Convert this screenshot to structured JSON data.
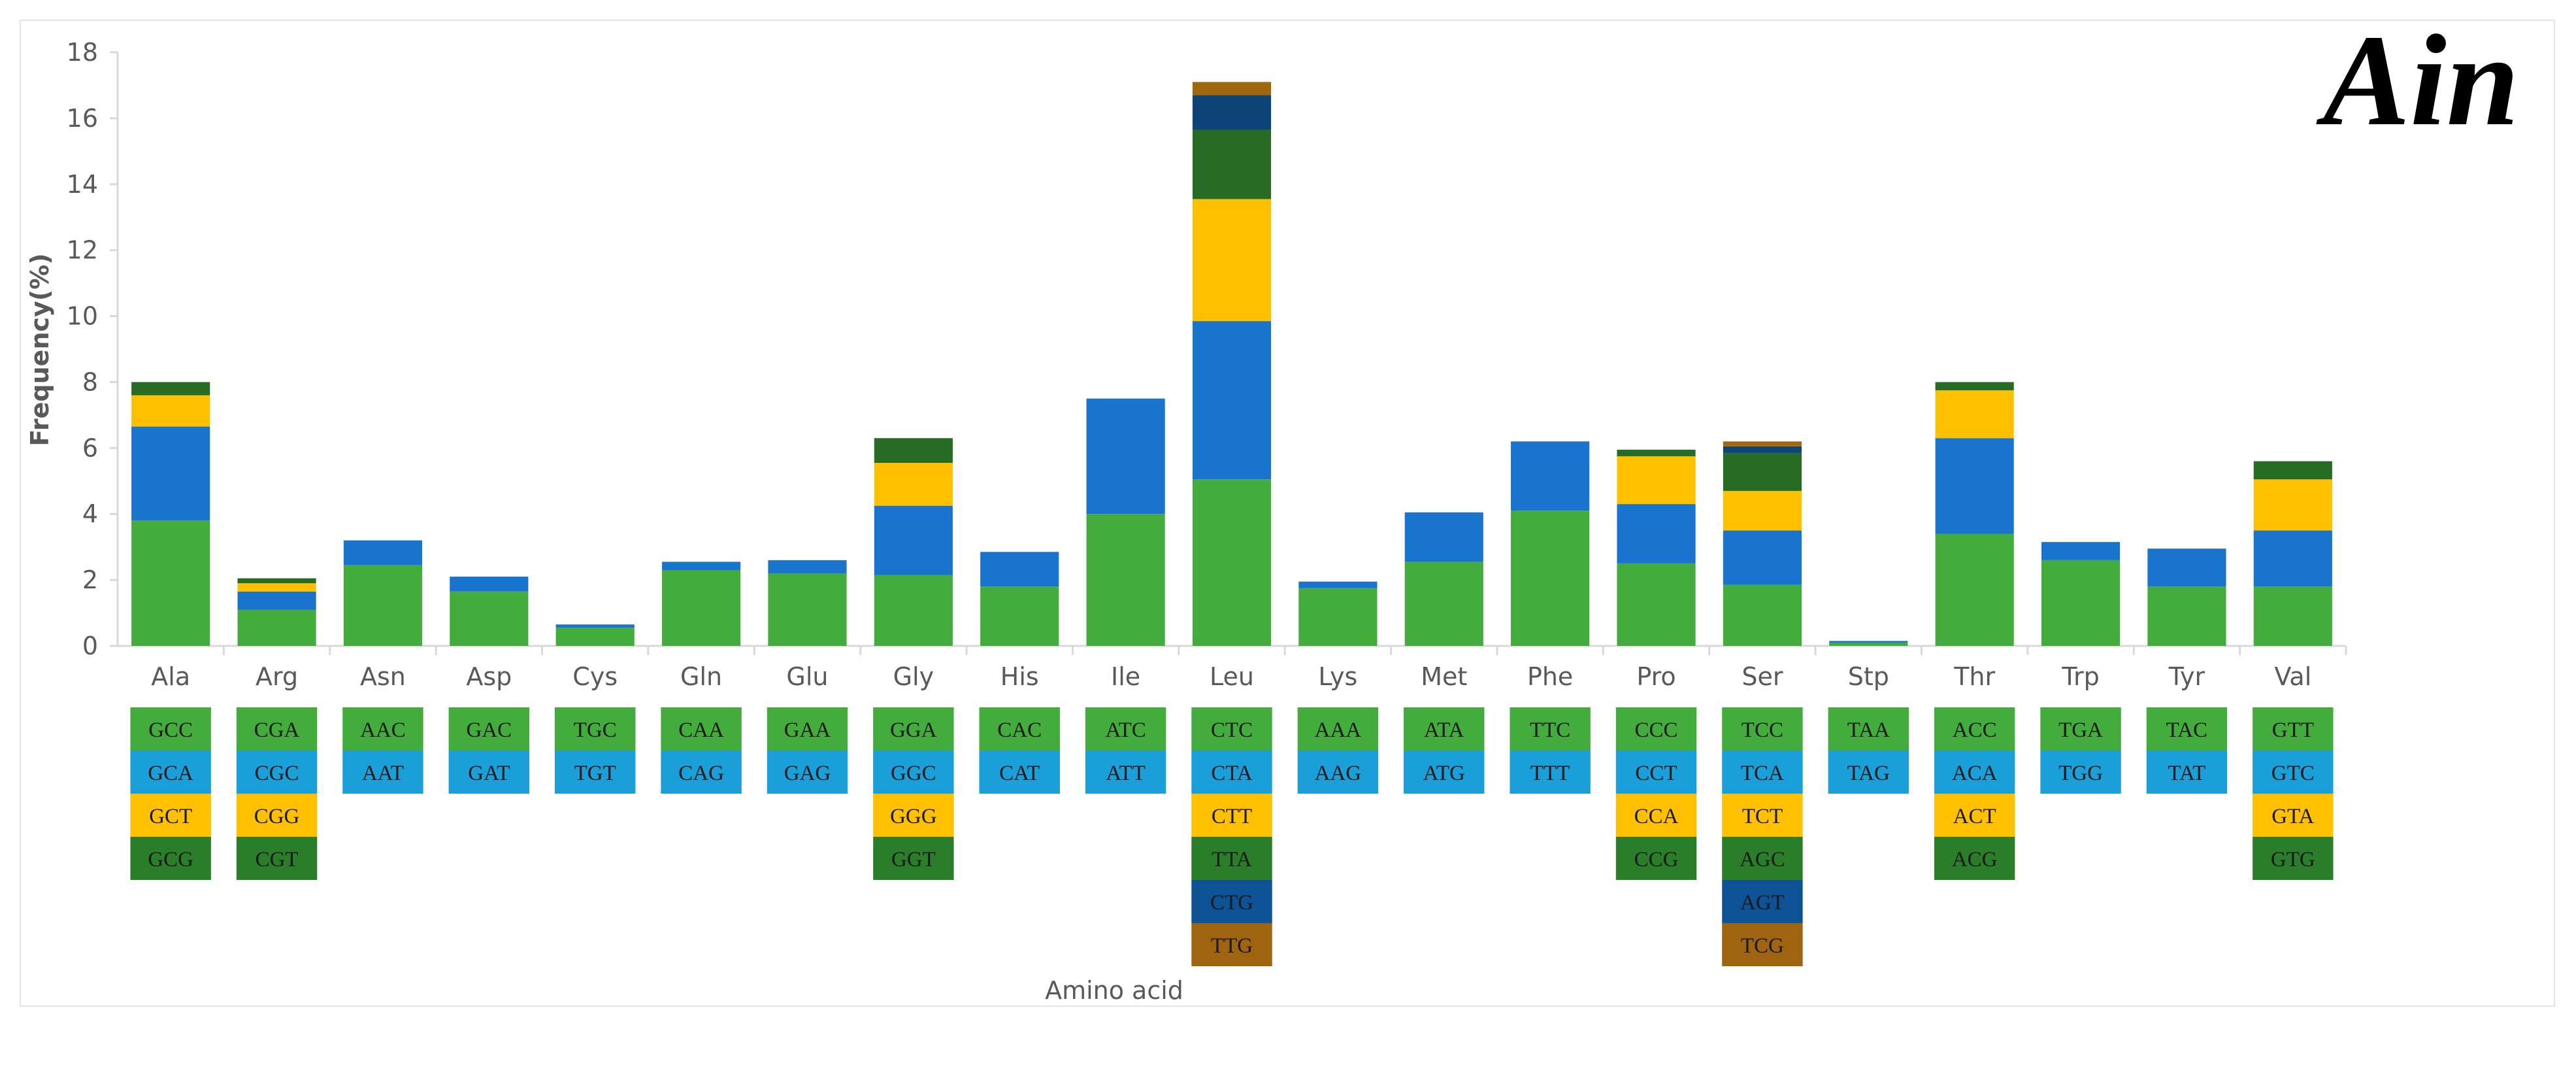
{
  "panel_label": "Ain",
  "chart_data": {
    "type": "bar",
    "stacked": true,
    "title": "",
    "xlabel": "Amino acid",
    "ylabel": "Frequency(%)",
    "ylim": [
      0,
      18
    ],
    "yticks": [
      0,
      2,
      4,
      6,
      8,
      10,
      12,
      14,
      16,
      18
    ],
    "grid": false,
    "legend": "codon table below x-axis",
    "stack_colors": [
      "#43AC3C",
      "#1874CD",
      "#FFC000",
      "#276B24",
      "#0C4478",
      "#A0680C"
    ],
    "codon_colors": [
      "#43AC3C",
      "#1B9FD9",
      "#FFC000",
      "#2A7D29",
      "#0C5294",
      "#9E6410"
    ],
    "categories": [
      "Ala",
      "Arg",
      "Asn",
      "Asp",
      "Cys",
      "Gln",
      "Glu",
      "Gly",
      "His",
      "Ile",
      "Leu",
      "Lys",
      "Met",
      "Phe",
      "Pro",
      "Ser",
      "Stp",
      "Thr",
      "Trp",
      "Tyr",
      "Val"
    ],
    "bars": [
      {
        "codons": [
          "GCC",
          "GCA",
          "GCT",
          "GCG"
        ],
        "values": [
          3.8,
          2.85,
          0.95,
          0.4
        ]
      },
      {
        "codons": [
          "CGA",
          "CGC",
          "CGG",
          "CGT"
        ],
        "values": [
          1.1,
          0.55,
          0.25,
          0.15
        ]
      },
      {
        "codons": [
          "AAC",
          "AAT"
        ],
        "values": [
          2.45,
          0.75
        ]
      },
      {
        "codons": [
          "GAC",
          "GAT"
        ],
        "values": [
          1.65,
          0.45
        ]
      },
      {
        "codons": [
          "TGC",
          "TGT"
        ],
        "values": [
          0.55,
          0.1
        ]
      },
      {
        "codons": [
          "CAA",
          "CAG"
        ],
        "values": [
          2.3,
          0.25
        ]
      },
      {
        "codons": [
          "GAA",
          "GAG"
        ],
        "values": [
          2.2,
          0.4
        ]
      },
      {
        "codons": [
          "GGA",
          "GGC",
          "GGG",
          "GGT"
        ],
        "values": [
          2.15,
          2.1,
          1.3,
          0.75
        ]
      },
      {
        "codons": [
          "CAC",
          "CAT"
        ],
        "values": [
          1.8,
          1.05
        ]
      },
      {
        "codons": [
          "ATC",
          "ATT"
        ],
        "values": [
          4.0,
          3.5
        ]
      },
      {
        "codons": [
          "CTC",
          "CTA",
          "CTT",
          "TTA",
          "CTG",
          "TTG"
        ],
        "values": [
          5.05,
          4.8,
          3.7,
          2.1,
          1.05,
          0.4
        ]
      },
      {
        "codons": [
          "AAA",
          "AAG"
        ],
        "values": [
          1.75,
          0.2
        ]
      },
      {
        "codons": [
          "ATA",
          "ATG"
        ],
        "values": [
          2.55,
          1.5
        ]
      },
      {
        "codons": [
          "TTC",
          "TTT"
        ],
        "values": [
          4.1,
          2.1
        ]
      },
      {
        "codons": [
          "CCC",
          "CCT",
          "CCA",
          "CCG"
        ],
        "values": [
          2.5,
          1.8,
          1.45,
          0.2
        ]
      },
      {
        "codons": [
          "TCC",
          "TCA",
          "TCT",
          "AGC",
          "AGT",
          "TCG"
        ],
        "values": [
          1.85,
          1.65,
          1.2,
          1.15,
          0.2,
          0.15
        ]
      },
      {
        "codons": [
          "TAA",
          "TAG"
        ],
        "values": [
          0.1,
          0.05
        ]
      },
      {
        "codons": [
          "ACC",
          "ACA",
          "ACT",
          "ACG"
        ],
        "values": [
          3.4,
          2.9,
          1.45,
          0.25
        ]
      },
      {
        "codons": [
          "TGA",
          "TGG"
        ],
        "values": [
          2.6,
          0.55
        ]
      },
      {
        "codons": [
          "TAC",
          "TAT"
        ],
        "values": [
          1.8,
          1.15
        ]
      },
      {
        "codons": [
          "GTT",
          "GTC",
          "GTA",
          "GTG"
        ],
        "values": [
          1.8,
          1.7,
          1.55,
          0.55
        ]
      }
    ]
  }
}
